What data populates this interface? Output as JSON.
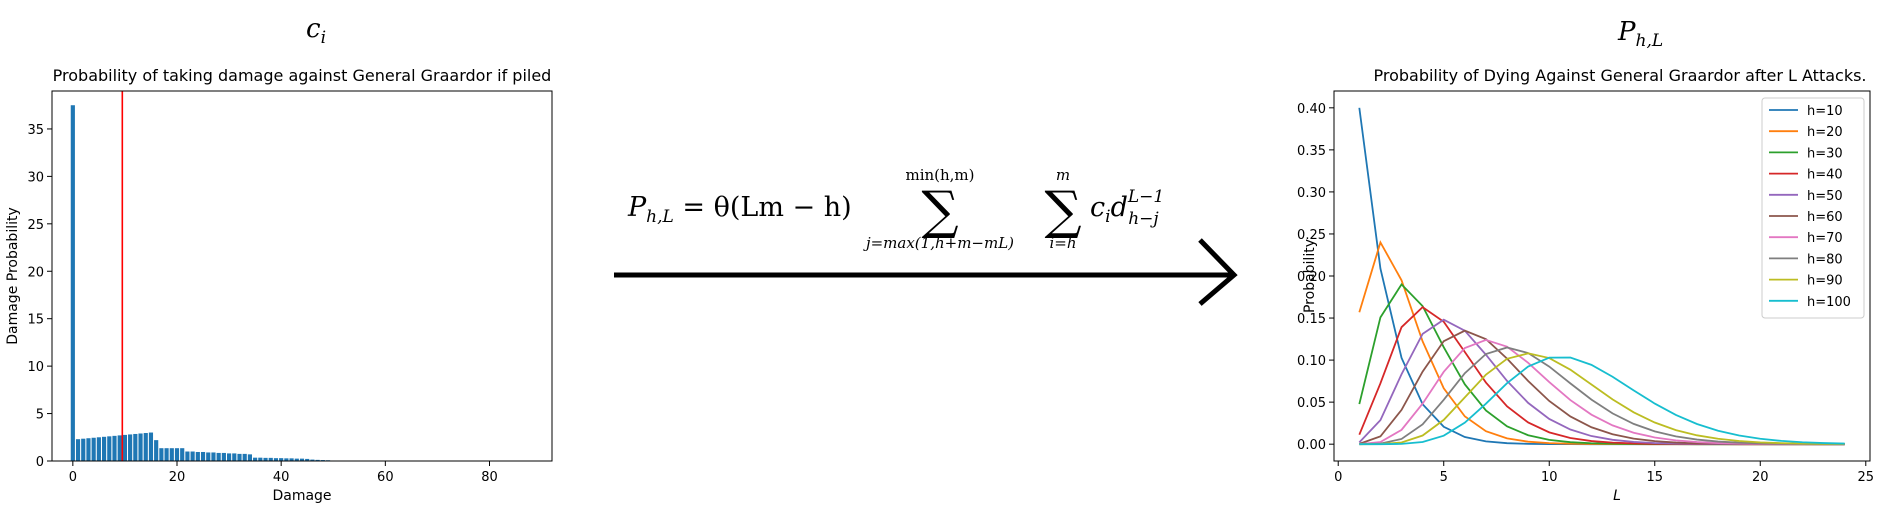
{
  "colors": {
    "bar": "#1f77b4",
    "vline": "#ff0000",
    "series": [
      "#1f77b4",
      "#ff7f0e",
      "#2ca02c",
      "#d62728",
      "#9467bd",
      "#8c564b",
      "#e377c2",
      "#7f7f7f",
      "#bcbd22",
      "#17becf"
    ]
  },
  "chart_data": [
    {
      "type": "bar",
      "header": "c_i",
      "title": "Probability of taking damage against General Graardor if piled",
      "xlabel": "Damage",
      "ylabel": "Damage Probability",
      "xlim": [
        -4,
        92
      ],
      "ylim": [
        0,
        39
      ],
      "xticks": [
        0,
        20,
        40,
        60,
        80
      ],
      "yticks": [
        0,
        5,
        10,
        15,
        20,
        25,
        30,
        35
      ],
      "vline_x": 9.5,
      "x": [
        0,
        1,
        2,
        3,
        4,
        5,
        6,
        7,
        8,
        9,
        10,
        11,
        12,
        13,
        14,
        15,
        16,
        17,
        18,
        19,
        20,
        21,
        22,
        23,
        24,
        25,
        26,
        27,
        28,
        29,
        30,
        31,
        32,
        33,
        34,
        35,
        36,
        37,
        38,
        39,
        40,
        41,
        42,
        43,
        44,
        45,
        46,
        47,
        48,
        49
      ],
      "values": [
        37.5,
        2.3,
        2.35,
        2.4,
        2.45,
        2.5,
        2.55,
        2.6,
        2.65,
        2.7,
        2.75,
        2.8,
        2.85,
        2.9,
        2.95,
        3.0,
        2.2,
        1.35,
        1.35,
        1.35,
        1.35,
        1.35,
        1.0,
        1.0,
        0.95,
        0.95,
        0.9,
        0.9,
        0.85,
        0.85,
        0.8,
        0.8,
        0.75,
        0.75,
        0.7,
        0.35,
        0.35,
        0.33,
        0.33,
        0.3,
        0.3,
        0.28,
        0.28,
        0.25,
        0.25,
        0.22,
        0.15,
        0.12,
        0.1,
        0.08
      ]
    },
    {
      "type": "line",
      "header": "P_{h,L}",
      "title": "Probability of Dying Against General Graardor after L Attacks.",
      "xlabel": "L",
      "ylabel": "Probability",
      "xlim": [
        -0.2,
        25.2
      ],
      "ylim": [
        -0.02,
        0.42
      ],
      "xticks": [
        0,
        5,
        10,
        15,
        20,
        25
      ],
      "yticks": [
        0.0,
        0.05,
        0.1,
        0.15,
        0.2,
        0.25,
        0.3,
        0.35,
        0.4
      ],
      "ytick_labels": [
        "0.00",
        "0.05",
        "0.10",
        "0.15",
        "0.20",
        "0.25",
        "0.30",
        "0.35",
        "0.40"
      ],
      "legend_position": "top-right",
      "series": [
        {
          "name": "h=10",
          "mode": 1,
          "peak": 0.4
        },
        {
          "name": "h=20",
          "mode": 2,
          "peak": 0.24
        },
        {
          "name": "h=30",
          "mode": 3,
          "peak": 0.19
        },
        {
          "name": "h=40",
          "mode": 4,
          "peak": 0.163
        },
        {
          "name": "h=50",
          "mode": 5,
          "peak": 0.148
        },
        {
          "name": "h=60",
          "mode": 6,
          "peak": 0.135
        },
        {
          "name": "h=70",
          "mode": 7,
          "peak": 0.124
        },
        {
          "name": "h=80",
          "mode": 8,
          "peak": 0.115
        },
        {
          "name": "h=90",
          "mode": 9,
          "peak": 0.108
        },
        {
          "name": "h=100",
          "mode": 10.5,
          "peak": 0.103
        }
      ],
      "L_values": [
        1,
        2,
        3,
        4,
        5,
        6,
        7,
        8,
        9,
        10,
        11,
        12,
        13,
        14,
        15,
        16,
        17,
        18,
        19,
        20,
        21,
        22,
        23,
        24
      ]
    }
  ],
  "formula": {
    "lhs": "P",
    "lhs_sub": "h,L",
    "eq": " = θ(Lm − h)",
    "sum1_upper": "min(h,m)",
    "sum1_lower": "j=max(1,h+m−mL)",
    "sum2_upper": "m",
    "sum2_lower": "i=h",
    "term_c": "c",
    "term_c_sub": "i",
    "term_d": "d",
    "term_d_sup": "L−1",
    "term_d_sub": "h−j"
  }
}
